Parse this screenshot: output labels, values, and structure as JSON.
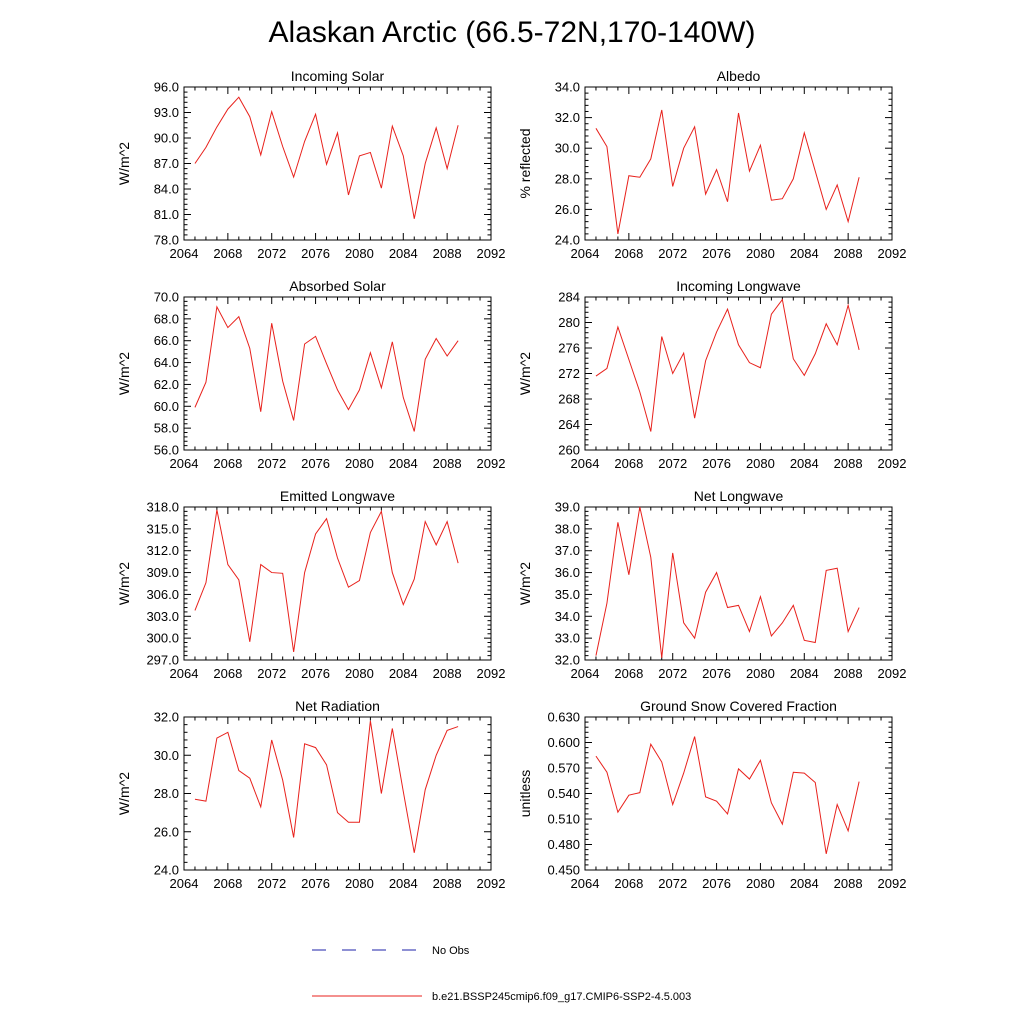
{
  "figure": {
    "title": "Alaskan Arctic (66.5-72N,170-140W)"
  },
  "legend": {
    "obs_label": "No Obs",
    "obs_color": "#1e22a8",
    "model_label": "b.e21.BSSP245cmip6.f09_g17.CMIP6-SSP2-4.5.003",
    "model_color": "#e8211c"
  },
  "chart_data": [
    {
      "type": "line",
      "title": "Incoming Solar",
      "ylabel": "W/m^2",
      "xlabel": "",
      "xlim": [
        2064,
        2092
      ],
      "ylim": [
        78,
        96
      ],
      "xticks": [
        2064,
        2068,
        2072,
        2076,
        2080,
        2084,
        2088,
        2092
      ],
      "yticks": [
        78,
        81,
        84,
        87,
        90,
        93,
        96
      ],
      "ytick_labels": [
        "78.0",
        "81.0",
        "84.0",
        "87.0",
        "90.0",
        "93.0",
        "96.0"
      ],
      "x": [
        2065,
        2066,
        2067,
        2068,
        2069,
        2070,
        2071,
        2072,
        2073,
        2074,
        2075,
        2076,
        2077,
        2078,
        2079,
        2080,
        2081,
        2082,
        2083,
        2084,
        2085,
        2086,
        2087,
        2088,
        2089
      ],
      "series": [
        {
          "name": "b.e21.BSSP245cmip6.f09_g17.CMIP6-SSP2-4.5.003",
          "values": [
            87.0,
            88.9,
            91.3,
            93.4,
            94.8,
            92.5,
            88.0,
            93.1,
            89.0,
            85.4,
            89.6,
            92.8,
            86.9,
            90.6,
            83.3,
            87.9,
            88.3,
            84.1,
            91.4,
            87.9,
            80.5,
            87.0,
            91.2,
            86.4,
            91.5
          ]
        }
      ]
    },
    {
      "type": "line",
      "title": "Albedo",
      "ylabel": "% reflected",
      "xlabel": "",
      "xlim": [
        2064,
        2092
      ],
      "ylim": [
        24,
        34
      ],
      "xticks": [
        2064,
        2068,
        2072,
        2076,
        2080,
        2084,
        2088,
        2092
      ],
      "yticks": [
        24,
        26,
        28,
        30,
        32,
        34
      ],
      "ytick_labels": [
        "24.0",
        "26.0",
        "28.0",
        "30.0",
        "32.0",
        "34.0"
      ],
      "x": [
        2065,
        2066,
        2067,
        2068,
        2069,
        2070,
        2071,
        2072,
        2073,
        2074,
        2075,
        2076,
        2077,
        2078,
        2079,
        2080,
        2081,
        2082,
        2083,
        2084,
        2085,
        2086,
        2087,
        2088,
        2089
      ],
      "series": [
        {
          "name": "b.e21.BSSP245cmip6.f09_g17.CMIP6-SSP2-4.5.003",
          "values": [
            31.3,
            30.1,
            24.4,
            28.2,
            28.1,
            29.3,
            32.5,
            27.5,
            30.0,
            31.4,
            27.0,
            28.6,
            26.5,
            32.3,
            28.5,
            30.2,
            26.6,
            26.7,
            28.0,
            31.0,
            28.5,
            26.0,
            27.6,
            25.2,
            28.1
          ]
        }
      ]
    },
    {
      "type": "line",
      "title": "Absorbed Solar",
      "ylabel": "W/m^2",
      "xlabel": "",
      "xlim": [
        2064,
        2092
      ],
      "ylim": [
        56,
        70
      ],
      "xticks": [
        2064,
        2068,
        2072,
        2076,
        2080,
        2084,
        2088,
        2092
      ],
      "yticks": [
        56,
        58,
        60,
        62,
        64,
        66,
        68,
        70
      ],
      "ytick_labels": [
        "56.0",
        "58.0",
        "60.0",
        "62.0",
        "64.0",
        "66.0",
        "68.0",
        "70.0"
      ],
      "x": [
        2065,
        2066,
        2067,
        2068,
        2069,
        2070,
        2071,
        2072,
        2073,
        2074,
        2075,
        2076,
        2077,
        2078,
        2079,
        2080,
        2081,
        2082,
        2083,
        2084,
        2085,
        2086,
        2087,
        2088,
        2089
      ],
      "series": [
        {
          "name": "b.e21.BSSP245cmip6.f09_g17.CMIP6-SSP2-4.5.003",
          "values": [
            59.9,
            62.2,
            69.1,
            67.2,
            68.2,
            65.3,
            59.5,
            67.6,
            62.3,
            58.7,
            65.7,
            66.4,
            63.9,
            61.5,
            59.7,
            61.5,
            64.9,
            61.7,
            65.9,
            60.8,
            57.7,
            64.3,
            66.2,
            64.6,
            66.0
          ]
        }
      ]
    },
    {
      "type": "line",
      "title": "Incoming Longwave",
      "ylabel": "W/m^2",
      "xlabel": "",
      "xlim": [
        2064,
        2092
      ],
      "ylim": [
        260,
        284
      ],
      "xticks": [
        2064,
        2068,
        2072,
        2076,
        2080,
        2084,
        2088,
        2092
      ],
      "yticks": [
        260,
        264,
        268,
        272,
        276,
        280,
        284
      ],
      "ytick_labels": [
        "260",
        "264",
        "268",
        "272",
        "276",
        "280",
        "284"
      ],
      "x": [
        2065,
        2066,
        2067,
        2068,
        2069,
        2070,
        2071,
        2072,
        2073,
        2074,
        2075,
        2076,
        2077,
        2078,
        2079,
        2080,
        2081,
        2082,
        2083,
        2084,
        2085,
        2086,
        2087,
        2088,
        2089
      ],
      "series": [
        {
          "name": "b.e21.BSSP245cmip6.f09_g17.CMIP6-SSP2-4.5.003",
          "values": [
            271.6,
            272.8,
            279.3,
            274.2,
            269.1,
            262.9,
            277.8,
            272.0,
            275.2,
            265.0,
            274.0,
            278.5,
            282.1,
            276.5,
            273.7,
            272.9,
            281.3,
            283.6,
            274.3,
            271.7,
            275.1,
            279.8,
            276.5,
            282.7,
            275.7
          ]
        }
      ]
    },
    {
      "type": "line",
      "title": "Emitted Longwave",
      "ylabel": "W/m^2",
      "xlabel": "",
      "xlim": [
        2064,
        2092
      ],
      "ylim": [
        297,
        318
      ],
      "xticks": [
        2064,
        2068,
        2072,
        2076,
        2080,
        2084,
        2088,
        2092
      ],
      "yticks": [
        297,
        300,
        303,
        306,
        309,
        312,
        315,
        318
      ],
      "ytick_labels": [
        "297.0",
        "300.0",
        "303.0",
        "306.0",
        "309.0",
        "312.0",
        "315.0",
        "318.0"
      ],
      "x": [
        2065,
        2066,
        2067,
        2068,
        2069,
        2070,
        2071,
        2072,
        2073,
        2074,
        2075,
        2076,
        2077,
        2078,
        2079,
        2080,
        2081,
        2082,
        2083,
        2084,
        2085,
        2086,
        2087,
        2088,
        2089
      ],
      "series": [
        {
          "name": "b.e21.BSSP245cmip6.f09_g17.CMIP6-SSP2-4.5.003",
          "values": [
            303.8,
            307.6,
            317.6,
            310.1,
            308.0,
            299.5,
            310.1,
            309.0,
            308.9,
            298.1,
            309.0,
            314.3,
            316.4,
            311.0,
            307.0,
            307.9,
            314.5,
            317.4,
            309.0,
            304.6,
            308.1,
            316.0,
            312.8,
            316.0,
            310.3
          ]
        }
      ]
    },
    {
      "type": "line",
      "title": "Net Longwave",
      "ylabel": "W/m^2",
      "xlabel": "",
      "xlim": [
        2064,
        2092
      ],
      "ylim": [
        32,
        39
      ],
      "xticks": [
        2064,
        2068,
        2072,
        2076,
        2080,
        2084,
        2088,
        2092
      ],
      "yticks": [
        32,
        33,
        34,
        35,
        36,
        37,
        38,
        39
      ],
      "ytick_labels": [
        "32.0",
        "33.0",
        "34.0",
        "35.0",
        "36.0",
        "37.0",
        "38.0",
        "39.0"
      ],
      "x": [
        2065,
        2066,
        2067,
        2068,
        2069,
        2070,
        2071,
        2072,
        2073,
        2074,
        2075,
        2076,
        2077,
        2078,
        2079,
        2080,
        2081,
        2082,
        2083,
        2084,
        2085,
        2086,
        2087,
        2088,
        2089
      ],
      "series": [
        {
          "name": "b.e21.BSSP245cmip6.f09_g17.CMIP6-SSP2-4.5.003",
          "values": [
            32.2,
            34.6,
            38.3,
            35.9,
            39.0,
            36.7,
            32.1,
            36.9,
            33.7,
            33.0,
            35.1,
            36.0,
            34.4,
            34.5,
            33.3,
            34.9,
            33.1,
            33.7,
            34.5,
            32.9,
            32.8,
            36.1,
            36.2,
            33.3,
            34.4
          ]
        }
      ]
    },
    {
      "type": "line",
      "title": "Net Radiation",
      "ylabel": "W/m^2",
      "xlabel": "",
      "xlim": [
        2064,
        2092
      ],
      "ylim": [
        24,
        32
      ],
      "xticks": [
        2064,
        2068,
        2072,
        2076,
        2080,
        2084,
        2088,
        2092
      ],
      "yticks": [
        24,
        26,
        28,
        30,
        32
      ],
      "ytick_labels": [
        "24.0",
        "26.0",
        "28.0",
        "30.0",
        "32.0"
      ],
      "x": [
        2065,
        2066,
        2067,
        2068,
        2069,
        2070,
        2071,
        2072,
        2073,
        2074,
        2075,
        2076,
        2077,
        2078,
        2079,
        2080,
        2081,
        2082,
        2083,
        2084,
        2085,
        2086,
        2087,
        2088,
        2089
      ],
      "series": [
        {
          "name": "b.e21.BSSP245cmip6.f09_g17.CMIP6-SSP2-4.5.003",
          "values": [
            27.7,
            27.6,
            30.9,
            31.2,
            29.2,
            28.8,
            27.3,
            30.8,
            28.7,
            25.7,
            30.6,
            30.4,
            29.5,
            27.0,
            26.5,
            26.5,
            31.8,
            28.0,
            31.4,
            28.1,
            24.9,
            28.2,
            30.0,
            31.3,
            31.5
          ]
        }
      ]
    },
    {
      "type": "line",
      "title": "Ground Snow Covered Fraction",
      "ylabel": "unitless",
      "xlabel": "",
      "xlim": [
        2064,
        2092
      ],
      "ylim": [
        0.45,
        0.63
      ],
      "xticks": [
        2064,
        2068,
        2072,
        2076,
        2080,
        2084,
        2088,
        2092
      ],
      "yticks": [
        0.45,
        0.48,
        0.51,
        0.54,
        0.57,
        0.6,
        0.63
      ],
      "ytick_labels": [
        "0.450",
        "0.480",
        "0.510",
        "0.540",
        "0.570",
        "0.600",
        "0.630"
      ],
      "x": [
        2065,
        2066,
        2067,
        2068,
        2069,
        2070,
        2071,
        2072,
        2073,
        2074,
        2075,
        2076,
        2077,
        2078,
        2079,
        2080,
        2081,
        2082,
        2083,
        2084,
        2085,
        2086,
        2087,
        2088,
        2089
      ],
      "series": [
        {
          "name": "b.e21.BSSP245cmip6.f09_g17.CMIP6-SSP2-4.5.003",
          "values": [
            0.584,
            0.565,
            0.518,
            0.538,
            0.541,
            0.598,
            0.577,
            0.527,
            0.564,
            0.607,
            0.536,
            0.531,
            0.516,
            0.569,
            0.557,
            0.579,
            0.529,
            0.504,
            0.565,
            0.564,
            0.553,
            0.469,
            0.527,
            0.496,
            0.554
          ]
        }
      ]
    }
  ]
}
